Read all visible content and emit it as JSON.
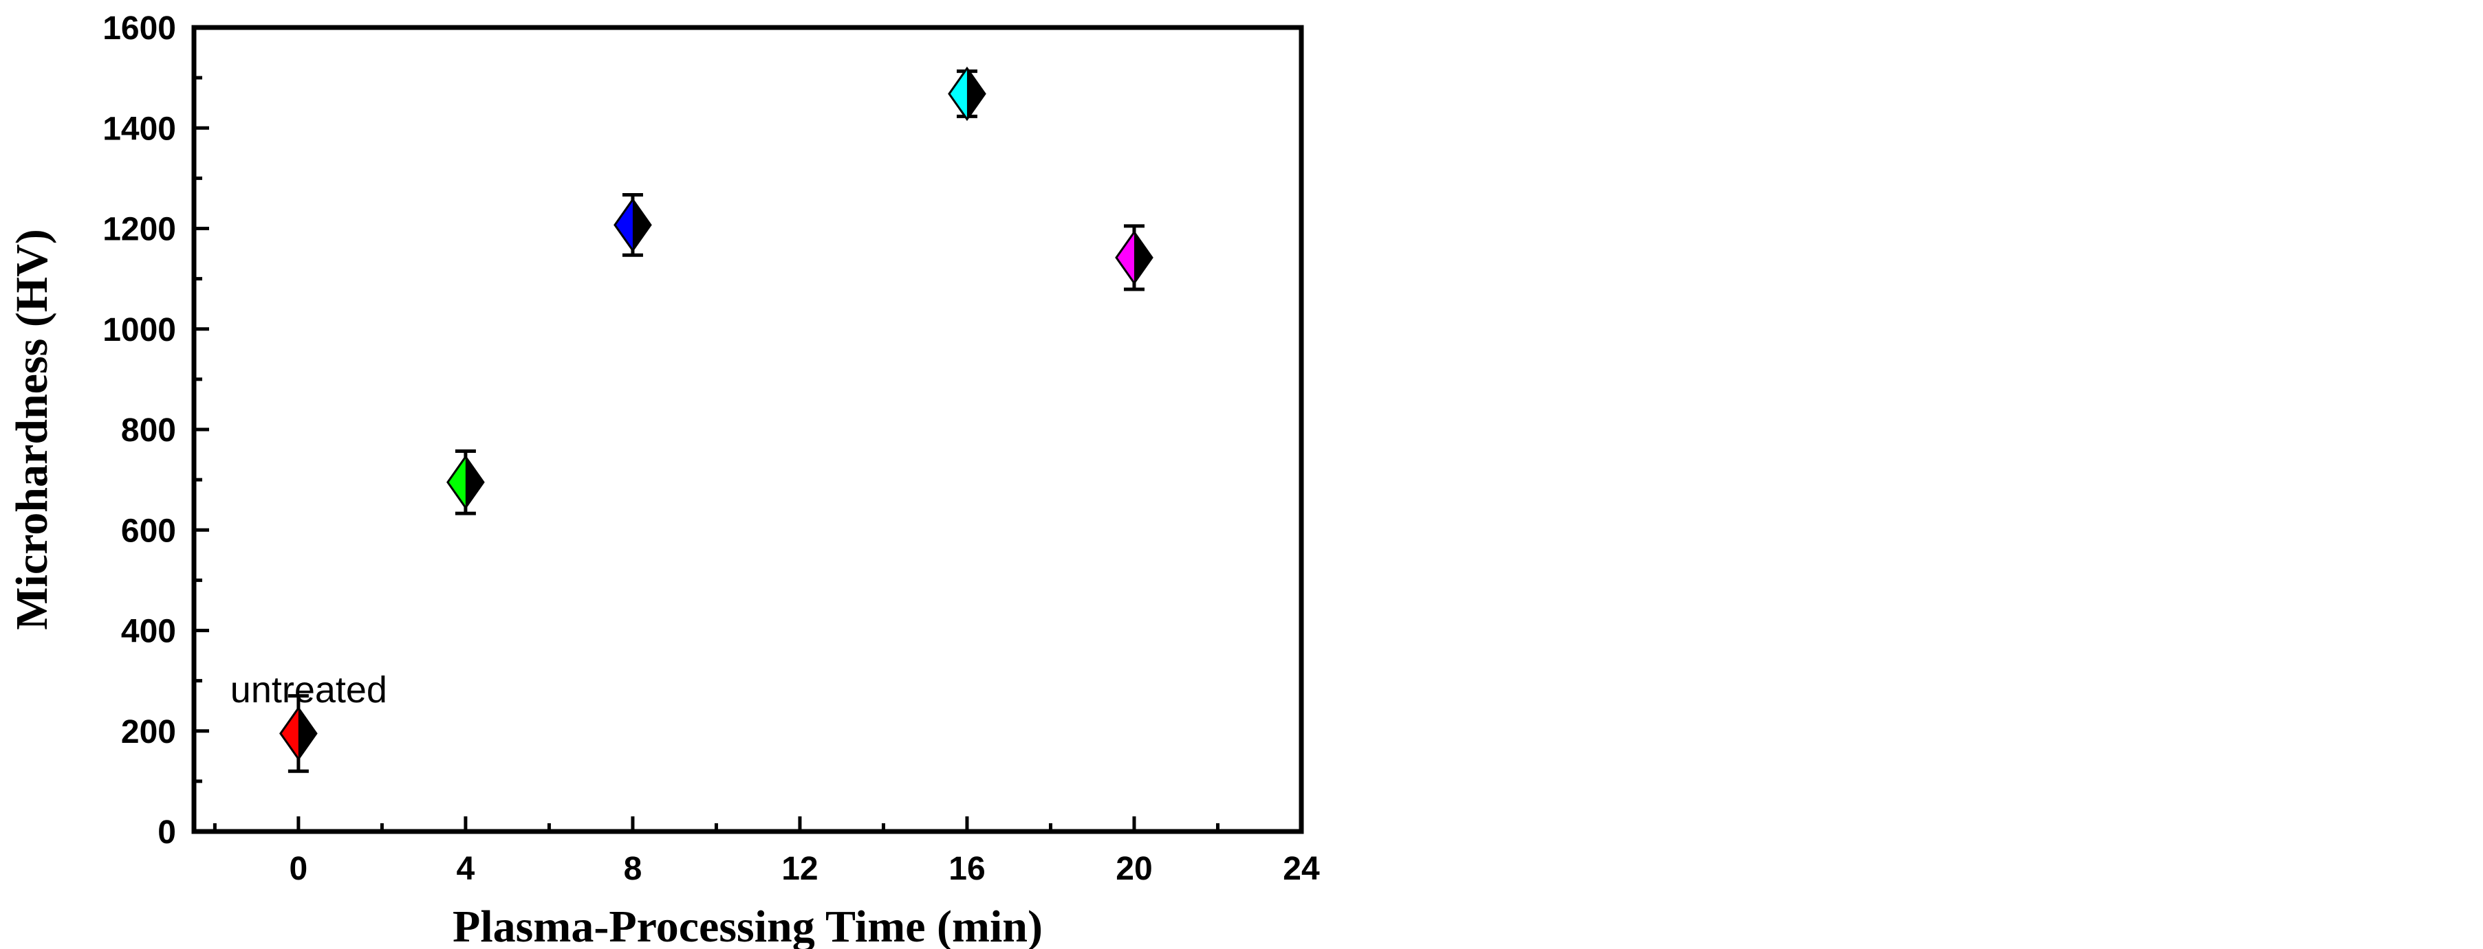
{
  "chart_data": {
    "type": "scatter",
    "title": "",
    "xlabel": "Plasma-Processing Time (min)",
    "ylabel": "Microhardness (HV)",
    "xlim": [
      -2.5,
      24
    ],
    "ylim": [
      0,
      1600
    ],
    "x_ticks": [
      0,
      4,
      8,
      12,
      16,
      20,
      24
    ],
    "x_minor_ticks": [
      -2,
      2,
      6,
      10,
      14,
      18,
      22
    ],
    "y_ticks": [
      0,
      200,
      400,
      600,
      800,
      1000,
      1200,
      1400,
      1600
    ],
    "y_minor_ticks": [
      100,
      300,
      500,
      700,
      900,
      1100,
      1300,
      1500
    ],
    "grid": false,
    "legend": "none",
    "marker": "half-filled diamond with error bars",
    "points": [
      {
        "x": 0,
        "y": 195,
        "error": 75,
        "color": "#ff0000"
      },
      {
        "x": 4,
        "y": 695,
        "error": 62,
        "color": "#00ff00"
      },
      {
        "x": 8,
        "y": 1207,
        "error": 60,
        "color": "#0000ff"
      },
      {
        "x": 16,
        "y": 1468,
        "error": 45,
        "color": "#00ffff"
      },
      {
        "x": 20,
        "y": 1142,
        "error": 63,
        "color": "#ff00ff"
      }
    ],
    "annotations": [
      {
        "text": "untreated",
        "x": 0,
        "y": 290
      }
    ]
  }
}
